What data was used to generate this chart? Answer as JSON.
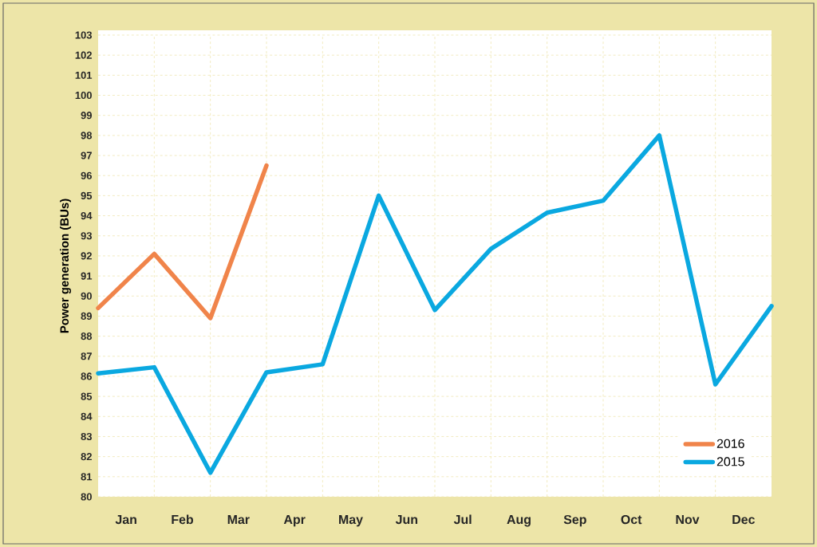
{
  "chart_data": {
    "type": "line",
    "ylabel": "Power generation (BUs)",
    "categories": [
      null,
      null,
      null,
      null,
      null,
      null,
      null,
      null,
      null,
      null,
      null,
      null,
      null
    ],
    "annotations": [
      "Jan",
      "Feb",
      "Mar",
      "Apr",
      "May",
      "Jun",
      "Jul",
      "Aug",
      "Sep",
      "Oct",
      "Nov",
      "Dec"
    ],
    "ylim": [
      80,
      103
    ],
    "yticks": [
      80,
      81,
      82,
      83,
      84,
      85,
      86,
      87,
      88,
      89,
      90,
      91,
      92,
      93,
      94,
      95,
      96,
      97,
      98,
      99,
      100,
      101,
      102,
      103
    ],
    "series": [
      {
        "name": "2016",
        "color": "#f0844a",
        "values": [
          89.4,
          92.1,
          88.9,
          96.5,
          null,
          null,
          null,
          null,
          null,
          null,
          null,
          null,
          null
        ]
      },
      {
        "name": "2015",
        "color": "#0aa8e0",
        "values": [
          86.15,
          86.45,
          81.2,
          86.2,
          86.6,
          95.0,
          89.3,
          92.35,
          94.15,
          94.75,
          98.0,
          85.6,
          89.5
        ]
      }
    ],
    "grid": true,
    "legend": "bottom right",
    "marker": "none",
    "line_style": "solid"
  }
}
